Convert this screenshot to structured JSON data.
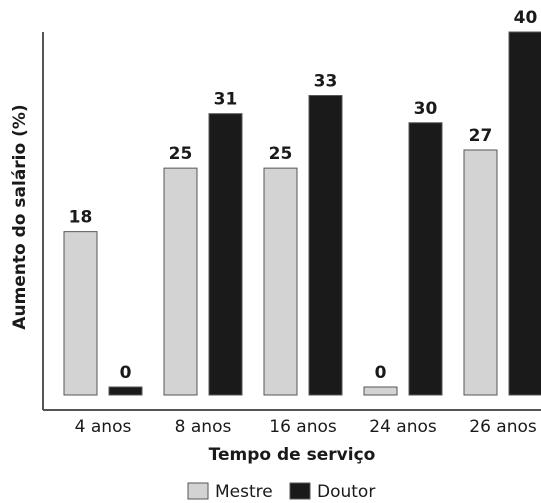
{
  "chart_data": {
    "type": "bar",
    "categories": [
      "4 anos",
      "8 anos",
      "16 anos",
      "24 anos",
      "26 anos"
    ],
    "series": [
      {
        "name": "Mestre",
        "values": [
          18,
          25,
          25,
          0,
          27
        ],
        "color": "#d3d3d3"
      },
      {
        "name": "Doutor",
        "values": [
          0,
          31,
          33,
          30,
          40
        ],
        "color": "#1a1a1a"
      }
    ],
    "xlabel": "Tempo de serviço",
    "ylabel": "Aumento do salário (%)",
    "ylim": [
      0,
      40
    ],
    "grid": false,
    "legend_position": "bottom"
  }
}
